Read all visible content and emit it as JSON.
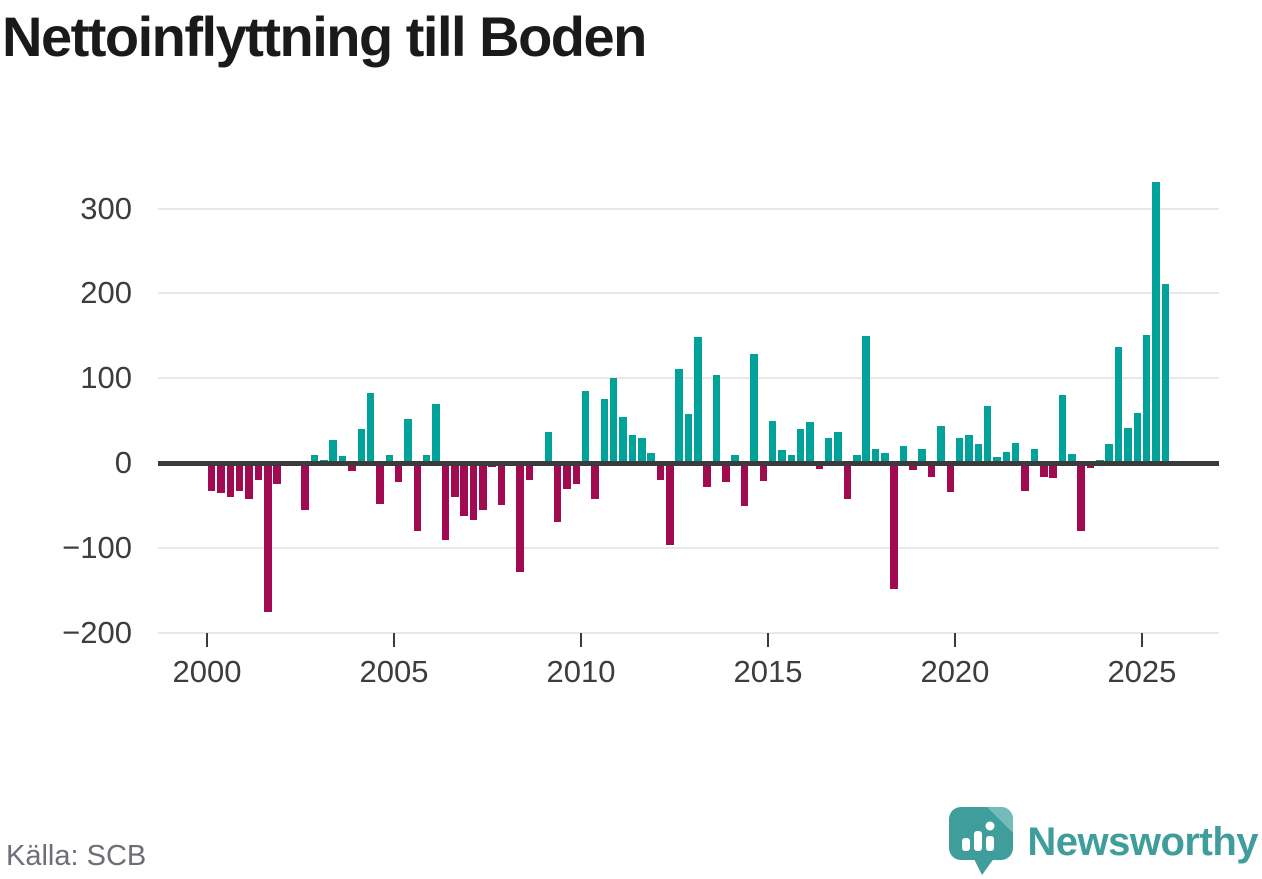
{
  "title": "Nettoinflyttning till Boden",
  "source": "Källa: SCB",
  "branding": {
    "name": "Newsworthy"
  },
  "colors": {
    "positive": "#00a299",
    "negative": "#a10a50",
    "zero_line": "#3b3b3b",
    "gridline": "#e8e8e8",
    "brand_teal": "#3f9e9c",
    "title_text": "#1a1a1a",
    "axis_text": "#3d3d3d",
    "source_text": "#6e6e78"
  },
  "chart_data": {
    "type": "bar",
    "title": "Nettoinflyttning till Boden",
    "x_unit": "quarter",
    "start_year": 2000,
    "start_quarter": 1,
    "end_year": 2025,
    "end_quarter": 3,
    "xticks": [
      2000,
      2005,
      2010,
      2015,
      2020,
      2025
    ],
    "yticks": [
      300,
      200,
      100,
      0,
      -100,
      -200
    ],
    "ylim": [
      -215,
      345
    ],
    "grid": "horizontal",
    "legend": "none",
    "values": [
      -33,
      -35,
      -40,
      -33,
      -42,
      -20,
      -176,
      -25,
      0,
      0,
      -56,
      9,
      4,
      27,
      8,
      -9,
      40,
      82,
      -48,
      10,
      -22,
      52,
      -80,
      10,
      70,
      -91,
      -40,
      -63,
      -67,
      -55,
      -5,
      -50,
      0,
      -129,
      -20,
      0,
      37,
      -70,
      -31,
      -25,
      85,
      -42,
      76,
      100,
      54,
      33,
      29,
      12,
      -20,
      -97,
      111,
      58,
      149,
      -28,
      104,
      -22,
      9,
      -51,
      129,
      -21,
      50,
      15,
      9,
      40,
      48,
      -7,
      29,
      36,
      -42,
      9,
      150,
      16,
      12,
      -149,
      20,
      -8,
      17,
      -16,
      44,
      -34,
      29,
      33,
      23,
      67,
      7,
      13,
      24,
      -33,
      16,
      -17,
      -18,
      80,
      11,
      -80,
      -6,
      3,
      22,
      137,
      41,
      59,
      151,
      331,
      211
    ]
  }
}
